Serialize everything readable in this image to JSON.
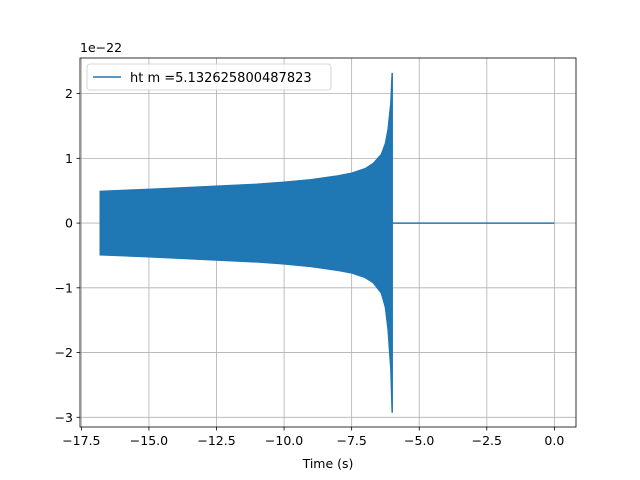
{
  "chart_data": {
    "type": "line",
    "title": "",
    "xlabel": "Time (s)",
    "ylabel": "",
    "y_offset_label": "1e−22",
    "xlim": [
      -17.55,
      0.8
    ],
    "ylim": [
      -3.15,
      2.55
    ],
    "grid": true,
    "legend_placement": "upper-left",
    "x_ticks": [
      -17.5,
      -15.0,
      -12.5,
      -10.0,
      -7.5,
      -5.0,
      -2.5,
      0.0
    ],
    "x_tick_labels": [
      "−17.5",
      "−15.0",
      "−12.5",
      "−10.0",
      "−7.5",
      "−5.0",
      "−2.5",
      "0.0"
    ],
    "y_ticks": [
      -3,
      -2,
      -1,
      0,
      1,
      2
    ],
    "y_tick_labels": [
      "−3",
      "−2",
      "−1",
      "0",
      "1",
      "2"
    ],
    "series": [
      {
        "name": "ht m =5.132625800487823",
        "color": "#1f77b4",
        "envelope_upper": {
          "x": [
            -16.8,
            -15.0,
            -13.0,
            -11.0,
            -10.0,
            -9.0,
            -8.0,
            -7.5,
            -7.0,
            -6.7,
            -6.4,
            -6.25,
            -6.15,
            -6.05,
            -6.0
          ],
          "y": [
            0.49,
            0.52,
            0.56,
            0.6,
            0.63,
            0.67,
            0.73,
            0.77,
            0.84,
            0.92,
            1.06,
            1.23,
            1.45,
            1.85,
            2.32
          ]
        },
        "envelope_lower": {
          "x": [
            -16.8,
            -15.0,
            -13.0,
            -11.0,
            -10.0,
            -9.0,
            -8.0,
            -7.5,
            -7.0,
            -6.7,
            -6.4,
            -6.25,
            -6.15,
            -6.05,
            -6.0
          ],
          "y": [
            -0.49,
            -0.52,
            -0.56,
            -0.6,
            -0.63,
            -0.67,
            -0.73,
            -0.77,
            -0.84,
            -0.92,
            -1.08,
            -1.3,
            -1.65,
            -2.25,
            -2.93
          ]
        },
        "flat_segment": {
          "x": [
            -6.0,
            0.0
          ],
          "y": [
            0.0,
            0.0
          ]
        }
      }
    ]
  }
}
